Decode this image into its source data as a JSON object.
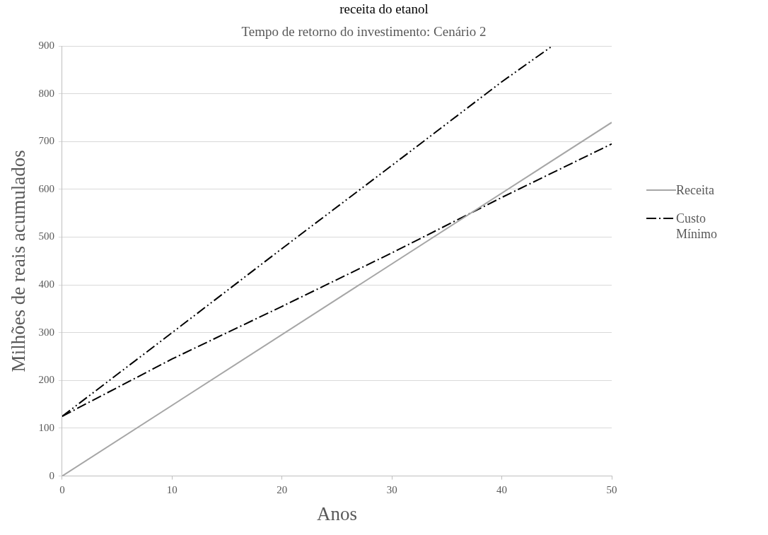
{
  "chart_data": {
    "type": "line",
    "title": "Tempo de retorno do investimento: Cenário 2",
    "xlabel": "Anos",
    "ylabel": "Milhões de reais acumulados",
    "annotations": [
      "receita do etanol"
    ],
    "series": [
      {
        "name": "Receita",
        "color": "#a6a6a6",
        "line_style": "solid",
        "x": [
          0,
          50
        ],
        "values": [
          0,
          740
        ]
      },
      {
        "name": "Custo Mínimo",
        "color": "#000000",
        "line_style": "dashed",
        "x": [
          0,
          10,
          20,
          30,
          40,
          50
        ],
        "values": [
          125,
          245,
          355,
          467,
          583,
          695
        ]
      },
      {
        "color": "#000000",
        "line_style": "dotted",
        "x": [
          0,
          10,
          20,
          30,
          40,
          44.6
        ],
        "values": [
          125,
          300,
          476,
          650,
          825,
          900
        ]
      }
    ],
    "xlim": [
      0,
      50
    ],
    "xticks": [
      0,
      10,
      20,
      30,
      40,
      50
    ],
    "ylim": [
      0,
      900
    ],
    "yticks": [
      0,
      100,
      200,
      300,
      400,
      500,
      600,
      700,
      800,
      900
    ],
    "grid": "y",
    "legend": "right",
    "marker": "none"
  }
}
